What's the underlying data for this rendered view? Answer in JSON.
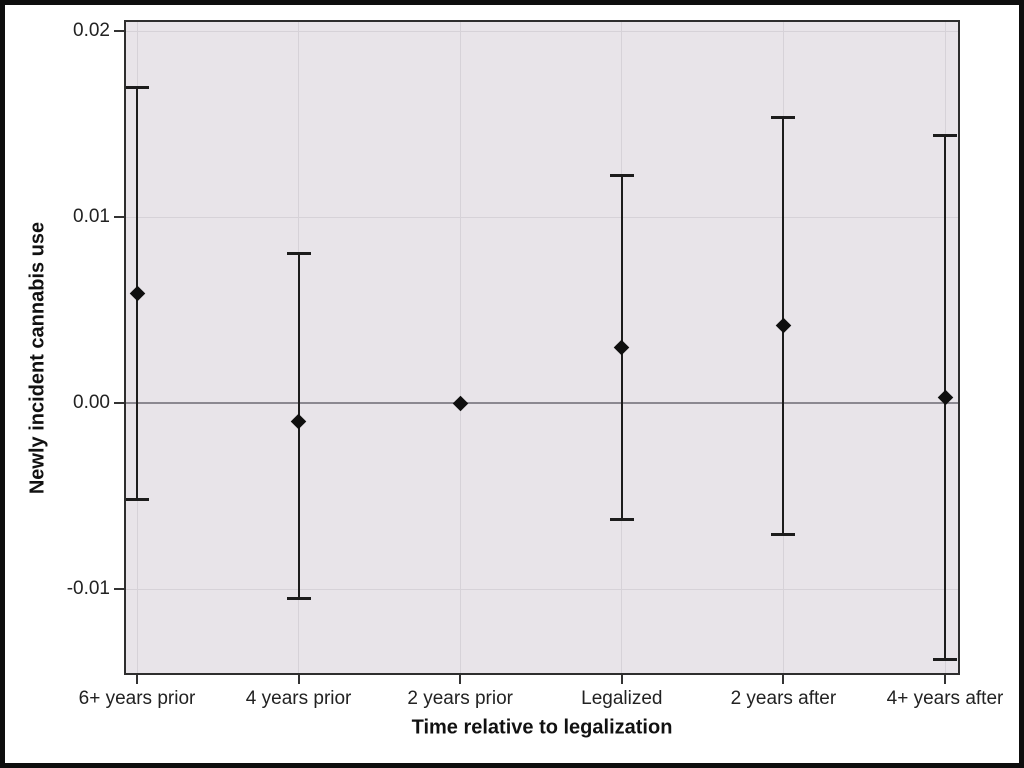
{
  "figure": {
    "outer_border_color": "#0e0e0e",
    "background_color": "#ffffff"
  },
  "chart_data": {
    "type": "scatter",
    "subtype": "point-estimates-with-error-bars",
    "title": "",
    "xlabel": "Time relative to legalization",
    "ylabel": "Newly incident cannabis use",
    "categories": [
      "6+ years prior",
      "4 years prior",
      "2 years prior",
      "Legalized",
      "2 years after",
      "4+ years after"
    ],
    "series": [
      {
        "name": "point-estimate-with-ci",
        "values": [
          0.0059,
          -0.001,
          0.0,
          0.003,
          0.0042,
          0.0003
        ],
        "ci_low": [
          -0.0052,
          -0.0105,
          null,
          -0.0063,
          -0.0071,
          -0.0138
        ],
        "ci_high": [
          0.017,
          0.0081,
          null,
          0.0123,
          0.0154,
          0.0144
        ]
      }
    ],
    "y_ticks": [
      0.02,
      0.01,
      0.0,
      -0.01
    ],
    "y_tick_labels": [
      "0.02",
      "0.01",
      "0.00",
      "-0.01"
    ],
    "ylim": [
      -0.0145,
      0.0205
    ],
    "reference_line_y": 0.0,
    "grid": true,
    "legend": "none",
    "marker": "diamond",
    "colors": {
      "plot_background": "#e8e4e9",
      "gridline": "#d6d2d8",
      "zero_line": "#8b8890",
      "marker_and_error_bar": "#1c1c1c",
      "frame": "#2e2e2e",
      "text": "#222222"
    }
  }
}
